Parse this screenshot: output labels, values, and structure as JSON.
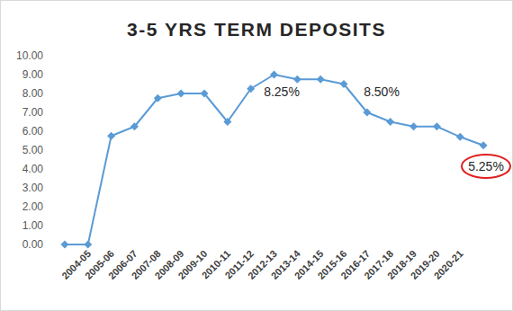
{
  "chart_data": {
    "type": "line",
    "title": "3-5 YRS TERM DEPOSITS",
    "categories": [
      null,
      "2004-05",
      "2005-06",
      "2006-07",
      "2007-08",
      "2008-09",
      "2009-10",
      "2010-11",
      "2011-12",
      "2012-13",
      "2013-14",
      "2014-15",
      "2015-16",
      "2016-17",
      "2017-18",
      "2018-19",
      "2019-20",
      "2020-21",
      null
    ],
    "values": [
      0,
      0,
      5.75,
      6.25,
      7.75,
      8.0,
      8.0,
      6.5,
      8.25,
      9.0,
      8.75,
      8.75,
      8.5,
      7.0,
      6.5,
      6.25,
      6.25,
      5.7,
      5.25
    ],
    "color": "#5b9bd5",
    "marker": "diamond",
    "ylim": [
      0,
      10
    ],
    "yticks": [
      {
        "value": 0,
        "label": "0.00"
      },
      {
        "value": 1,
        "label": "1.00"
      },
      {
        "value": 2,
        "label": "2.00"
      },
      {
        "value": 3,
        "label": "3.00"
      },
      {
        "value": 4,
        "label": "4.00"
      },
      {
        "value": 5,
        "label": "5.00"
      },
      {
        "value": 6,
        "label": "6.00"
      },
      {
        "value": 7,
        "label": "7.00"
      },
      {
        "value": 8,
        "label": "8.00"
      },
      {
        "value": 9,
        "label": "9.00"
      },
      {
        "value": 10,
        "label": "10.00"
      }
    ],
    "grid": false,
    "annotations": [
      "8.25%",
      "8.50%",
      "5.25%"
    ]
  }
}
